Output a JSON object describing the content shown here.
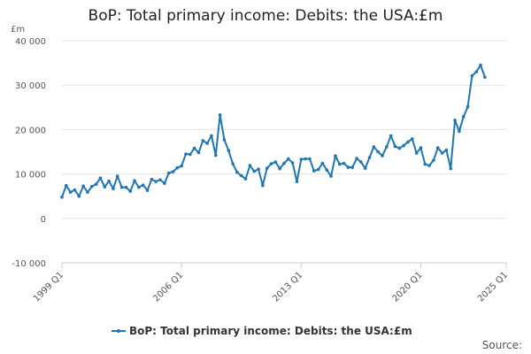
{
  "chart_data": {
    "type": "line",
    "title": "BoP: Total primary income: Debits: the USA:£m",
    "ylabel": "£m",
    "xlabel": "",
    "ylim": [
      -10000,
      40000
    ],
    "yticks": [
      -10000,
      0,
      10000,
      20000,
      30000,
      40000
    ],
    "ytick_labels": [
      "-10 000",
      "0",
      "10 000",
      "20 000",
      "30 000",
      "40 000"
    ],
    "xticks": [
      "1999 Q1",
      "2006 Q1",
      "2013 Q1",
      "2020 Q1",
      "2025 Q1"
    ],
    "grid": "horizontal",
    "legend_position": "bottom",
    "source": "Source:",
    "series": [
      {
        "name": "BoP: Total primary income: Debits: the USA:£m",
        "color": "#1f77b4",
        "start": "1999 Q1",
        "values": [
          4800,
          7400,
          5900,
          6400,
          5000,
          7300,
          5900,
          7200,
          7700,
          9100,
          7100,
          8400,
          6700,
          9500,
          7000,
          7000,
          6100,
          8500,
          7000,
          7500,
          6300,
          8800,
          8300,
          8700,
          7900,
          10200,
          10500,
          11400,
          11800,
          14500,
          14400,
          15800,
          14800,
          17500,
          16900,
          18600,
          14200,
          23300,
          17700,
          15300,
          12300,
          10400,
          9600,
          8900,
          11900,
          10600,
          11100,
          7400,
          11300,
          12300,
          12700,
          11200,
          12400,
          13400,
          12500,
          8300,
          13300,
          13400,
          13400,
          10700,
          11000,
          12400,
          10900,
          9500,
          14100,
          12200,
          12400,
          11500,
          11500,
          13500,
          12700,
          11300,
          13700,
          16100,
          15000,
          14100,
          16100,
          18600,
          16200,
          15800,
          16400,
          17200,
          17900,
          14700,
          15900,
          12200,
          11900,
          13100,
          15900,
          14700,
          15400,
          11200,
          22100,
          19600,
          22900,
          25100,
          32100,
          33000,
          34500,
          31800
        ]
      }
    ]
  }
}
